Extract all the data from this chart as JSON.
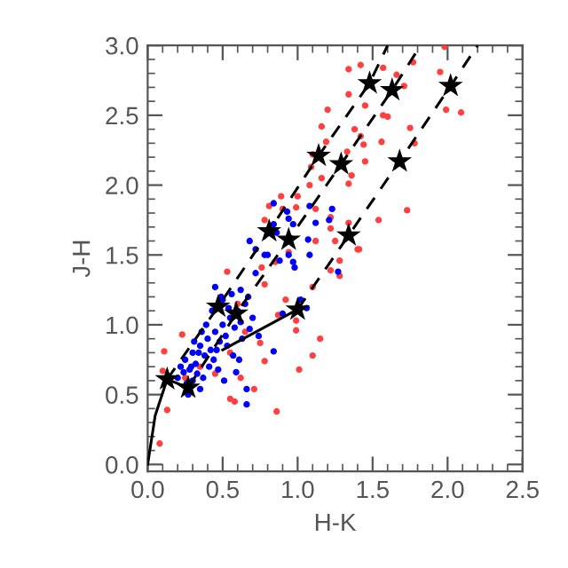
{
  "chart_data": {
    "type": "scatter",
    "xlabel": "H-K",
    "ylabel": "J-H",
    "grid": false,
    "legend": false,
    "xlim": [
      0,
      2.5
    ],
    "ylim": [
      -0.05,
      3.0
    ],
    "xticks": [
      {
        "value": 0,
        "label": "0.0"
      },
      {
        "value": 0.5,
        "label": "0.5"
      },
      {
        "value": 1,
        "label": "1.0"
      },
      {
        "value": 1.5,
        "label": "1.5"
      },
      {
        "value": 2,
        "label": "2.0"
      },
      {
        "value": 2.5,
        "label": "2.5"
      }
    ],
    "yticks": [
      {
        "value": 0,
        "label": "0.0"
      },
      {
        "value": 0.5,
        "label": "0.5"
      },
      {
        "value": 1,
        "label": "1.0"
      },
      {
        "value": 1.5,
        "label": "1.5"
      },
      {
        "value": 2,
        "label": "2.0"
      },
      {
        "value": 2.5,
        "label": "2.5"
      },
      {
        "value": 3,
        "label": "3.0"
      }
    ],
    "series": [
      {
        "type": "scatter",
        "marker": "circle",
        "color": "#ff4040",
        "x": [
          1.34,
          1.42,
          1.57,
          1.77,
          1.98,
          1.95,
          2.09,
          1.99,
          1.71,
          1.66,
          1.57,
          1.6,
          1.45,
          1.34,
          1.2,
          1.16,
          1.38,
          1.42,
          1.44,
          1.56,
          1.75,
          1.78,
          1.19,
          1.1,
          1.33,
          1.45,
          1.36,
          1.34,
          1.16,
          1.09,
          1.08,
          1.0,
          0.89,
          0.9,
          0.81,
          0.99,
          1.12,
          1.22,
          1.22,
          1.34,
          1.12,
          1.25,
          1.4,
          1.73,
          1.54,
          0.78,
          1.41,
          1.28,
          1.22,
          1.28,
          1.1,
          0.99,
          0.99,
          1.15,
          1.1,
          1.01,
          0.86,
          0.78,
          0.71,
          0.62,
          0.58,
          0.55,
          0.11,
          0.13,
          0.08,
          0.1,
          0.23,
          0.53,
          0.76,
          0.85,
          0.94,
          0.78,
          0.92,
          0.75,
          0.87,
          0.35,
          0.45,
          0.6,
          0.55,
          0.25,
          0.65
        ],
        "values": [
          2.83,
          2.86,
          2.84,
          2.88,
          2.99,
          2.81,
          2.52,
          2.54,
          2.71,
          2.79,
          2.5,
          2.49,
          2.57,
          2.65,
          2.54,
          2.42,
          2.4,
          2.35,
          2.29,
          2.31,
          2.41,
          2.3,
          2.31,
          2.22,
          2.24,
          2.17,
          2.07,
          2.01,
          2.05,
          2.13,
          2.0,
          1.92,
          1.92,
          1.83,
          1.85,
          1.84,
          1.83,
          1.77,
          1.69,
          1.73,
          1.6,
          1.6,
          1.54,
          1.82,
          1.75,
          1.75,
          1.54,
          1.46,
          1.39,
          1.35,
          1.27,
          0.96,
          1.03,
          0.9,
          0.78,
          0.68,
          0.38,
          0.74,
          0.54,
          0.62,
          0.45,
          0.47,
          0.81,
          0.39,
          0.15,
          0.67,
          0.93,
          1.38,
          1.41,
          1.45,
          1.52,
          1.29,
          1.18,
          0.87,
          1.07,
          0.7,
          0.65,
          1.15,
          0.8,
          0.62,
          0.95
        ]
      },
      {
        "type": "scatter",
        "marker": "circle",
        "color": "#0000ff",
        "x": [
          0.84,
          0.93,
          0.94,
          0.97,
          0.84,
          0.86,
          1.08,
          1.23,
          1.12,
          1.08,
          0.68,
          0.72,
          0.94,
          0.8,
          0.88,
          0.97,
          1.27,
          1.21,
          1.07,
          0.45,
          0.5,
          0.62,
          0.72,
          0.78,
          0.98,
          1.02,
          1.06,
          0.9,
          0.84,
          0.66,
          0.66,
          0.35,
          0.27,
          0.2,
          0.22,
          0.25,
          0.28,
          0.3,
          0.32,
          0.35,
          0.38,
          0.4,
          0.42,
          0.45,
          0.48,
          0.5,
          0.52,
          0.55,
          0.58,
          0.6,
          0.62,
          0.65,
          0.68,
          0.7,
          0.3,
          0.33,
          0.37,
          0.41,
          0.44,
          0.47,
          0.53,
          0.57,
          0.26,
          0.24,
          0.36,
          0.43,
          0.49,
          0.56,
          0.63,
          0.39,
          0.31,
          0.46,
          0.54,
          0.61,
          0.67,
          0.74,
          0.29,
          0.34,
          0.51,
          0.59
        ],
        "values": [
          1.87,
          1.81,
          1.76,
          1.72,
          1.72,
          1.66,
          1.85,
          1.83,
          1.73,
          1.5,
          1.6,
          1.54,
          1.5,
          1.5,
          1.46,
          1.45,
          1.38,
          1.75,
          1.61,
          1.27,
          1.18,
          1.25,
          1.37,
          1.5,
          1.41,
          1.18,
          1.12,
          1.08,
          0.81,
          0.43,
          0.54,
          0.54,
          0.5,
          0.62,
          0.7,
          0.75,
          0.68,
          0.8,
          0.72,
          0.85,
          0.78,
          0.9,
          0.82,
          0.95,
          0.88,
          1.0,
          0.92,
          1.05,
          0.98,
          1.1,
          1.02,
          1.15,
          0.97,
          1.05,
          0.6,
          0.65,
          0.62,
          0.7,
          0.75,
          0.68,
          0.85,
          0.78,
          0.58,
          0.66,
          0.95,
          1.1,
          1.2,
          1.22,
          0.9,
          1.0,
          0.88,
          0.82,
          1.12,
          0.75,
          1.2,
          0.92,
          0.7,
          0.8,
          0.6,
          0.66
        ]
      },
      {
        "type": "line",
        "line_style": "dashed",
        "color": "#000000",
        "x": [
          0.13,
          0.47,
          0.81,
          1.14,
          1.48,
          1.6
        ],
        "values": [
          0.61,
          1.13,
          1.67,
          2.21,
          2.73,
          3.0
        ]
      },
      {
        "type": "line",
        "line_style": "dashed",
        "color": "#000000",
        "x": [
          0.27,
          0.59,
          0.94,
          1.29,
          1.63,
          1.82
        ],
        "values": [
          0.55,
          1.08,
          1.61,
          2.15,
          2.68,
          3.0
        ]
      },
      {
        "type": "line",
        "line_style": "dashed",
        "color": "#000000",
        "x": [
          1.0,
          1.34,
          1.68,
          2.02,
          2.2
        ],
        "values": [
          1.11,
          1.64,
          2.17,
          2.71,
          3.0
        ]
      },
      {
        "type": "line",
        "line_style": "solid",
        "color": "#000000",
        "x": [
          0.0,
          0.05,
          0.13,
          0.27
        ],
        "values": [
          0.0,
          0.35,
          0.61,
          0.55
        ]
      },
      {
        "type": "line",
        "line_style": "solid",
        "color": "#000000",
        "x": [
          0.5,
          1.0
        ],
        "values": [
          0.82,
          1.11
        ]
      },
      {
        "type": "scatter",
        "marker": "star",
        "color": "#000000",
        "x": [
          1.48,
          1.63,
          2.02,
          1.14,
          1.29,
          1.68,
          0.81,
          0.94,
          1.34,
          0.47,
          0.59,
          1.0,
          0.13,
          0.27
        ],
        "values": [
          2.73,
          2.68,
          2.71,
          2.21,
          2.15,
          2.17,
          1.67,
          1.61,
          1.64,
          1.13,
          1.08,
          1.11,
          0.61,
          0.55
        ]
      }
    ]
  }
}
